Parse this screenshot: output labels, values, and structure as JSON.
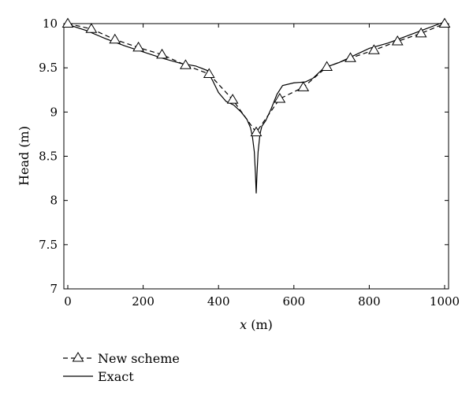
{
  "chart_data": {
    "type": "line",
    "xlabel_var": "x",
    "xlabel_unit": " (m)",
    "ylabel": "Head (m)",
    "xlim": [
      0,
      1000
    ],
    "ylim": [
      7,
      10
    ],
    "xticks": [
      0,
      200,
      400,
      600,
      800,
      1000
    ],
    "xtick_labels": [
      "0",
      "200",
      "400",
      "600",
      "800",
      "1000"
    ],
    "yticks": [
      7,
      7.5,
      8,
      8.5,
      9,
      9.5,
      10
    ],
    "ytick_labels": [
      "7",
      "7.5",
      "8",
      "8.5",
      "9",
      "9.5",
      "10"
    ],
    "grid": false,
    "legend_position": "bottom-left-outside",
    "series": [
      {
        "name": "New scheme",
        "style": "dashed",
        "marker": "triangle",
        "color": "#000000",
        "x": [
          0,
          62.5,
          125,
          187.5,
          250,
          312.5,
          375,
          437.5,
          500,
          562.5,
          625,
          687.5,
          750,
          812.5,
          875,
          937.5,
          1000
        ],
        "y": [
          10.0,
          9.94,
          9.82,
          9.73,
          9.65,
          9.53,
          9.43,
          9.14,
          8.77,
          9.15,
          9.28,
          9.51,
          9.61,
          9.7,
          9.8,
          9.89,
          10.0
        ]
      },
      {
        "name": "Exact",
        "style": "solid",
        "marker": "none",
        "color": "#000000",
        "x": [
          0,
          50,
          100,
          150,
          200,
          250,
          300,
          340,
          370,
          385,
          400,
          420,
          440,
          460,
          475,
          485,
          490,
          495,
          498,
          500,
          502,
          505,
          510,
          515,
          525,
          540,
          555,
          570,
          600,
          630,
          650,
          680,
          720,
          760,
          800,
          850,
          900,
          950,
          1000
        ],
        "y": [
          9.99,
          9.92,
          9.83,
          9.75,
          9.68,
          9.61,
          9.55,
          9.52,
          9.47,
          9.35,
          9.22,
          9.12,
          9.08,
          9.0,
          8.92,
          8.82,
          8.72,
          8.55,
          8.3,
          8.08,
          8.3,
          8.55,
          8.75,
          8.84,
          8.9,
          9.04,
          9.2,
          9.3,
          9.33,
          9.34,
          9.38,
          9.5,
          9.56,
          9.64,
          9.72,
          9.78,
          9.86,
          9.94,
          10.02
        ]
      }
    ]
  }
}
